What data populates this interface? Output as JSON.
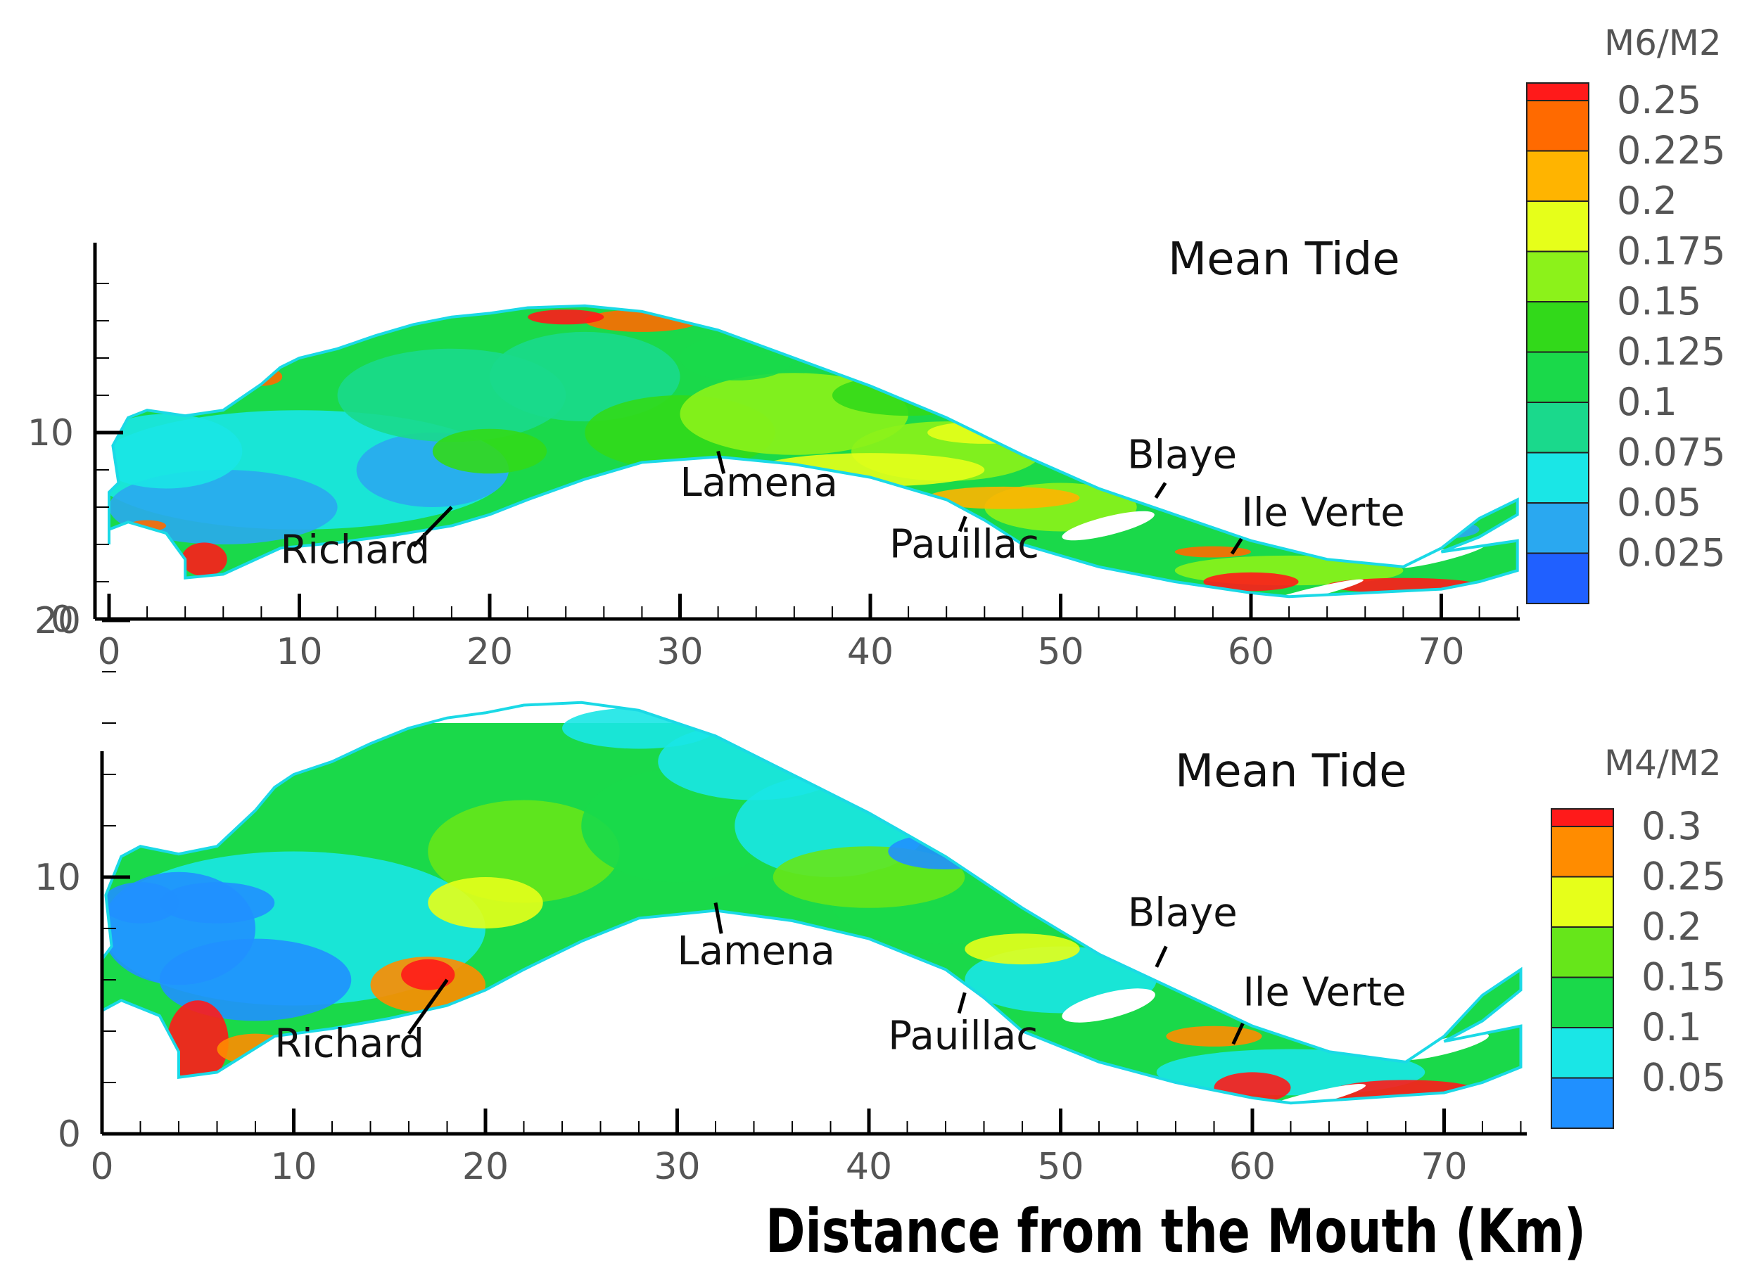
{
  "chart_data": [
    {
      "type": "heatmap",
      "title": "Mean Tide",
      "colorbar_title": "M6/M2",
      "colorbar_levels": [
        "0.25",
        "0.225",
        "0.2",
        "0.175",
        "0.15",
        "0.125",
        "0.1",
        "0.075",
        "0.05",
        "0.025"
      ],
      "colorbar_colors": [
        "#ff1a1a",
        "#ff6a00",
        "#ffb400",
        "#e6ff1a",
        "#8cf21a",
        "#32d91a",
        "#1ad94a",
        "#1ad98c",
        "#1ae6e6",
        "#2aa8f0",
        "#2060ff"
      ],
      "x_ticks": [
        "0",
        "10",
        "20",
        "30",
        "40",
        "50",
        "60",
        "70"
      ],
      "y_ticks": [
        "0",
        "10"
      ],
      "xlim": [
        0,
        74
      ],
      "ylim": [
        0,
        19
      ],
      "places": [
        {
          "name": "Richard",
          "x": 18,
          "y": 6
        },
        {
          "name": "Lamena",
          "x": 32,
          "y": 9
        },
        {
          "name": "Pauillac",
          "x": 45,
          "y": 5.5
        },
        {
          "name": "Blaye",
          "x": 55,
          "y": 6.5
        },
        {
          "name": "Ile Verte",
          "x": 59,
          "y": 3.5
        }
      ]
    },
    {
      "type": "heatmap",
      "title": "Mean Tide",
      "colorbar_title": "M4/M2",
      "colorbar_levels": [
        "0.3",
        "0.25",
        "0.2",
        "0.15",
        "0.1",
        "0.05"
      ],
      "colorbar_colors": [
        "#ff1a1a",
        "#ff8c00",
        "#e6ff1a",
        "#66e61a",
        "#1ad94a",
        "#1ae6e6",
        "#2090ff"
      ],
      "x_ticks": [
        "0",
        "10",
        "20",
        "30",
        "40",
        "50",
        "60",
        "70"
      ],
      "y_ticks": [
        "0",
        "10",
        "20"
      ],
      "xlim": [
        0,
        74
      ],
      "ylim": [
        0,
        20
      ],
      "places": [
        {
          "name": "Richard",
          "x": 18,
          "y": 6
        },
        {
          "name": "Lamena",
          "x": 32,
          "y": 9
        },
        {
          "name": "Pauillac",
          "x": 45,
          "y": 5.5
        },
        {
          "name": "Blaye",
          "x": 55,
          "y": 6.5
        },
        {
          "name": "Ile Verte",
          "x": 59,
          "y": 3.5
        }
      ]
    }
  ],
  "xlabel": "Distance from the Mouth (Km)"
}
